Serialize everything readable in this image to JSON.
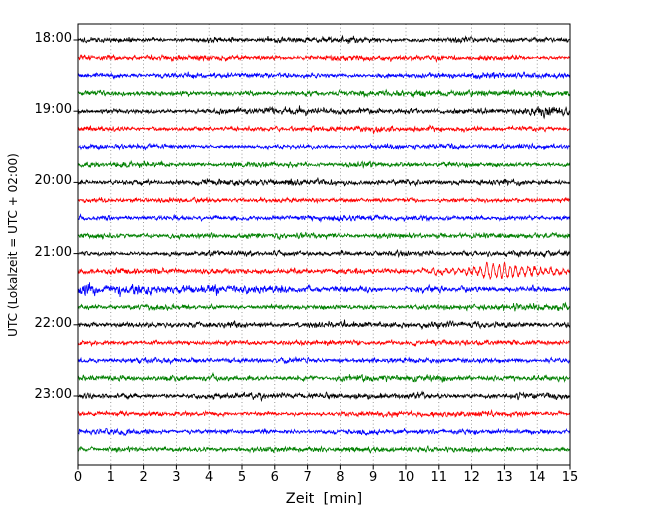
{
  "chart_data": {
    "type": "line",
    "title": "",
    "subtitle": "seismogram / helicorder display, 24 traces of 15 minutes each",
    "xlabel": "Zeit  [min]",
    "ylabel": "UTC (Lokalzeit = UTC + 02:00)",
    "xlim": [
      0,
      15
    ],
    "x_ticks": [
      0,
      1,
      2,
      3,
      4,
      5,
      6,
      7,
      8,
      9,
      10,
      11,
      12,
      13,
      14,
      15
    ],
    "x_tick_labels": [
      "0",
      "1",
      "2",
      "3",
      "4",
      "5",
      "6",
      "7",
      "8",
      "9",
      "10",
      "11",
      "12",
      "13",
      "14",
      "15"
    ],
    "y_tick_labels": [
      "18:00",
      "19:00",
      "20:00",
      "21:00",
      "22:00",
      "23:00"
    ],
    "grid": "vertical-dotted",
    "legend": "none",
    "minutes_per_trace": 15,
    "traces_per_hour": 4,
    "colors": {
      "black": "#000000",
      "red": "#ff0000",
      "blue": "#0000ff",
      "green": "#008000",
      "grid": "#808080",
      "frame": "#000000",
      "background": "#ffffff"
    },
    "event_note": "wave packet on 21:15 red trace peaking near minute 13, coda on 21:30 blue trace",
    "traces": [
      {
        "start_utc": "18:00",
        "color": "black",
        "seed": 11,
        "noise": 1.0
      },
      {
        "start_utc": "18:15",
        "color": "red",
        "seed": 12,
        "noise": 0.9
      },
      {
        "start_utc": "18:30",
        "color": "blue",
        "seed": 13,
        "noise": 0.95
      },
      {
        "start_utc": "18:45",
        "color": "green",
        "seed": 14,
        "noise": 1.0
      },
      {
        "start_utc": "19:00",
        "color": "black",
        "seed": 15,
        "noise": 1.2
      },
      {
        "start_utc": "19:15",
        "color": "red",
        "seed": 16,
        "noise": 1.0
      },
      {
        "start_utc": "19:30",
        "color": "blue",
        "seed": 17,
        "noise": 0.9
      },
      {
        "start_utc": "19:45",
        "color": "green",
        "seed": 18,
        "noise": 1.0
      },
      {
        "start_utc": "20:00",
        "color": "black",
        "seed": 19,
        "noise": 1.05
      },
      {
        "start_utc": "20:15",
        "color": "red",
        "seed": 20,
        "noise": 0.85
      },
      {
        "start_utc": "20:30",
        "color": "blue",
        "seed": 21,
        "noise": 0.9
      },
      {
        "start_utc": "20:45",
        "color": "green",
        "seed": 22,
        "noise": 1.0
      },
      {
        "start_utc": "21:00",
        "color": "black",
        "seed": 23,
        "noise": 1.0
      },
      {
        "start_utc": "21:15",
        "color": "red",
        "seed": 24,
        "noise": 1.0,
        "event": {
          "period": 0.18,
          "bursts": [
            {
              "center": 10.6,
              "width": 0.35,
              "amp": 1.2
            },
            {
              "center": 11.4,
              "width": 0.5,
              "amp": 2.0
            },
            {
              "center": 12.4,
              "width": 0.55,
              "amp": 3.0
            },
            {
              "center": 13.05,
              "width": 0.75,
              "amp": 5.2
            },
            {
              "center": 14.3,
              "width": 1.0,
              "amp": 2.2
            }
          ]
        }
      },
      {
        "start_utc": "21:30",
        "color": "blue",
        "seed": 25,
        "noise": 1.1,
        "decay": {
          "factor": 1.5,
          "tau": 3.5
        }
      },
      {
        "start_utc": "21:45",
        "color": "green",
        "seed": 26,
        "noise": 1.05
      },
      {
        "start_utc": "22:00",
        "color": "black",
        "seed": 27,
        "noise": 1.1
      },
      {
        "start_utc": "22:15",
        "color": "red",
        "seed": 28,
        "noise": 0.9
      },
      {
        "start_utc": "22:30",
        "color": "blue",
        "seed": 29,
        "noise": 0.95
      },
      {
        "start_utc": "22:45",
        "color": "green",
        "seed": 30,
        "noise": 1.15
      },
      {
        "start_utc": "23:00",
        "color": "black",
        "seed": 31,
        "noise": 1.05
      },
      {
        "start_utc": "23:15",
        "color": "red",
        "seed": 32,
        "noise": 0.9
      },
      {
        "start_utc": "23:30",
        "color": "blue",
        "seed": 33,
        "noise": 1.0
      },
      {
        "start_utc": "23:45",
        "color": "green",
        "seed": 34,
        "noise": 0.95
      }
    ]
  }
}
